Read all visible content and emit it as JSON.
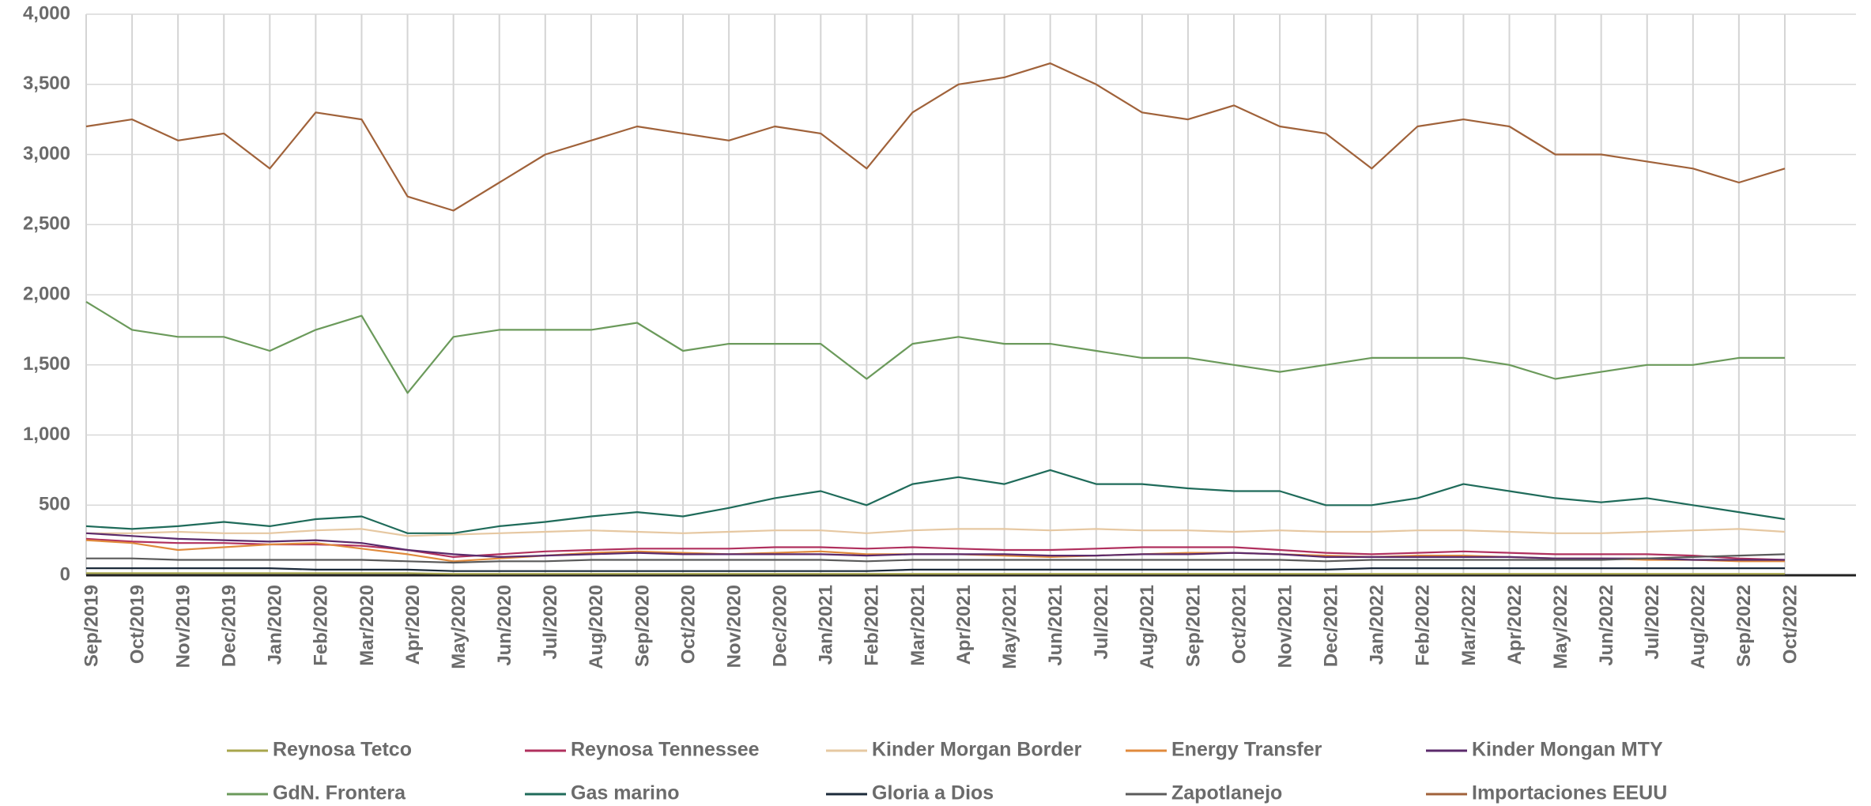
{
  "chart_data": {
    "type": "line",
    "categories": [
      "Sep/2019",
      "Oct/2019",
      "Nov/2019",
      "Dec/2019",
      "Jan/2020",
      "Feb/2020",
      "Mar/2020",
      "Apr/2020",
      "May/2020",
      "Jun/2020",
      "Jul/2020",
      "Aug/2020",
      "Sep/2020",
      "Oct/2020",
      "Nov/2020",
      "Dec/2020",
      "Jan/2021",
      "Feb/2021",
      "Mar/2021",
      "Apr/2021",
      "May/2021",
      "Jun/2021",
      "Jul/2021",
      "Aug/2021",
      "Sep/2021",
      "Oct/2021",
      "Nov/2021",
      "Dec/2021",
      "Jan/2022",
      "Feb/2022",
      "Mar/2022",
      "Apr/2022",
      "May/2022",
      "Jun/2022",
      "Jul/2022",
      "Aug/2022",
      "Sep/2022",
      "Oct/2022"
    ],
    "ylim": [
      0,
      4000
    ],
    "yticks": [
      0,
      500,
      {
        "value": 1000,
        "label": "1,000"
      },
      {
        "value": 1500,
        "label": "1,500"
      },
      {
        "value": 2000,
        "label": "2,000"
      },
      {
        "value": 2500,
        "label": "2,500"
      },
      {
        "value": 3000,
        "label": "3,000"
      },
      {
        "value": 3500,
        "label": "3,500"
      },
      {
        "value": 4000,
        "label": "4,000"
      }
    ],
    "grid": true,
    "legend": "bottom",
    "series": [
      {
        "name": "Reynosa Tetco",
        "color": "#a8a64c",
        "values": [
          15,
          15,
          15,
          15,
          15,
          15,
          15,
          15,
          10,
          10,
          10,
          10,
          10,
          10,
          10,
          10,
          10,
          10,
          10,
          10,
          10,
          10,
          10,
          10,
          10,
          10,
          10,
          10,
          10,
          10,
          10,
          10,
          10,
          10,
          10,
          10,
          10,
          10
        ]
      },
      {
        "name": "Reynosa Tennessee",
        "color": "#b0305e",
        "values": [
          260,
          240,
          230,
          230,
          220,
          220,
          210,
          180,
          130,
          150,
          170,
          180,
          190,
          190,
          190,
          200,
          200,
          190,
          200,
          190,
          180,
          180,
          190,
          200,
          200,
          200,
          180,
          160,
          150,
          160,
          170,
          160,
          150,
          150,
          150,
          140,
          120,
          110
        ]
      },
      {
        "name": "Kinder Morgan Border",
        "color": "#e6c8a2",
        "values": [
          300,
          300,
          310,
          300,
          300,
          320,
          330,
          280,
          290,
          300,
          310,
          320,
          310,
          300,
          310,
          320,
          320,
          300,
          320,
          330,
          330,
          320,
          330,
          320,
          320,
          310,
          320,
          310,
          310,
          320,
          320,
          310,
          300,
          300,
          310,
          320,
          330,
          310
        ]
      },
      {
        "name": "Energy Transfer",
        "color": "#e08a3c",
        "values": [
          250,
          230,
          180,
          200,
          220,
          230,
          190,
          150,
          100,
          120,
          140,
          160,
          170,
          160,
          150,
          160,
          170,
          150,
          150,
          150,
          140,
          130,
          140,
          150,
          160,
          160,
          150,
          140,
          130,
          140,
          140,
          130,
          120,
          120,
          110,
          110,
          100,
          100
        ]
      },
      {
        "name": "Kinder Mongan MTY",
        "color": "#5b2a6b",
        "values": [
          300,
          280,
          260,
          250,
          240,
          250,
          230,
          180,
          150,
          130,
          140,
          150,
          160,
          150,
          150,
          150,
          150,
          140,
          150,
          150,
          150,
          140,
          140,
          150,
          150,
          160,
          150,
          130,
          130,
          130,
          130,
          130,
          120,
          120,
          120,
          110,
          110,
          110
        ]
      },
      {
        "name": "GdN. Frontera",
        "color": "#6b9a5b",
        "values": [
          1950,
          1750,
          1700,
          1700,
          1600,
          1750,
          1850,
          1300,
          1700,
          1750,
          1750,
          1750,
          1800,
          1600,
          1650,
          1650,
          1650,
          1400,
          1650,
          1700,
          1650,
          1650,
          1600,
          1550,
          1550,
          1500,
          1450,
          1500,
          1550,
          1550,
          1550,
          1500,
          1400,
          1450,
          1500,
          1500,
          1550,
          1550
        ]
      },
      {
        "name": "Gas marino",
        "color": "#1f6b5a",
        "values": [
          350,
          330,
          350,
          380,
          350,
          400,
          420,
          300,
          300,
          350,
          380,
          420,
          450,
          420,
          480,
          550,
          600,
          500,
          650,
          700,
          650,
          750,
          650,
          650,
          620,
          600,
          600,
          500,
          500,
          550,
          650,
          600,
          550,
          520,
          550,
          500,
          450,
          400
        ]
      },
      {
        "name": "Gloria a Dios",
        "color": "#1b2a3a",
        "values": [
          50,
          50,
          50,
          50,
          50,
          40,
          40,
          40,
          30,
          30,
          30,
          30,
          30,
          30,
          30,
          30,
          30,
          30,
          40,
          40,
          40,
          40,
          40,
          40,
          40,
          40,
          40,
          40,
          50,
          50,
          50,
          50,
          50,
          50,
          50,
          50,
          50,
          50
        ]
      },
      {
        "name": "Zapotlanejo",
        "color": "#5a5a5a",
        "values": [
          120,
          120,
          110,
          110,
          110,
          110,
          110,
          100,
          90,
          100,
          100,
          110,
          110,
          110,
          110,
          110,
          110,
          100,
          110,
          110,
          110,
          110,
          110,
          110,
          110,
          110,
          110,
          100,
          110,
          110,
          110,
          110,
          110,
          110,
          120,
          130,
          140,
          150
        ]
      },
      {
        "name": "Importaciones EEUU",
        "color": "#a0623a",
        "values": [
          3200,
          3250,
          3100,
          3150,
          2900,
          3300,
          3250,
          2700,
          2600,
          2800,
          3000,
          3100,
          3200,
          3150,
          3100,
          3200,
          3150,
          2900,
          3300,
          3500,
          3550,
          3650,
          3500,
          3300,
          3250,
          3350,
          3200,
          3150,
          2900,
          3200,
          3250,
          3200,
          3000,
          3000,
          2950,
          2900,
          2800,
          2900
        ]
      }
    ]
  }
}
